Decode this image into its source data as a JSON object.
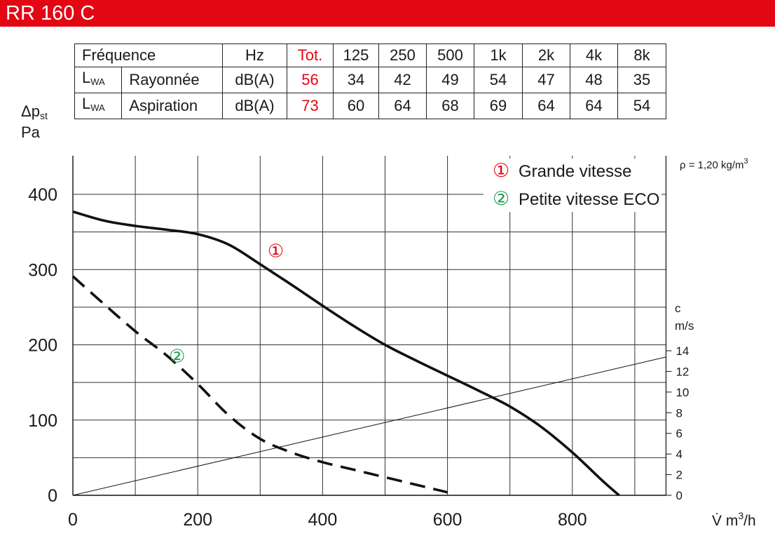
{
  "page": {
    "title": "RR 160 C",
    "brand_color": "#e30613",
    "green_color": "#1aa04a"
  },
  "table": {
    "header": [
      "Fréquence",
      "Hz",
      "Tot.",
      "125",
      "250",
      "500",
      "1k",
      "2k",
      "4k",
      "8k"
    ],
    "rows": [
      {
        "sym": "L",
        "sub": "WA",
        "name": "Rayonnée",
        "unit": "dB(A)",
        "tot": "56",
        "values": [
          "34",
          "42",
          "49",
          "54",
          "47",
          "48",
          "35"
        ]
      },
      {
        "sym": "L",
        "sub": "WA",
        "name": "Aspiration",
        "unit": "dB(A)",
        "tot": "73",
        "values": [
          "60",
          "64",
          "68",
          "69",
          "64",
          "64",
          "54"
        ]
      }
    ]
  },
  "chart_data": {
    "type": "line",
    "ylabel": {
      "sym": "Δp",
      "sub": "st",
      "unit": "Pa"
    },
    "xlabel": {
      "sym": "V̇",
      "unit": "m",
      "sup": "3",
      "tail": "/h"
    },
    "density_note": {
      "lhs": "ρ = 1,20 kg/m",
      "sup": "3"
    },
    "xlim": [
      0,
      950
    ],
    "ylim": [
      0,
      450
    ],
    "xticks": [
      0,
      200,
      400,
      600,
      800
    ],
    "xgrid": [
      100,
      200,
      300,
      400,
      500,
      600,
      700,
      800,
      900
    ],
    "yticks": [
      0,
      100,
      200,
      300,
      400
    ],
    "ygrid": [
      50,
      100,
      150,
      200,
      250,
      300,
      350,
      400
    ],
    "grid": true,
    "legend_position": "top-right",
    "series": [
      {
        "name": "Grande vitesse",
        "marker": "①",
        "style": "solid",
        "x": [
          0,
          50,
          100,
          150,
          200,
          250,
          300,
          350,
          400,
          450,
          500,
          550,
          600,
          650,
          700,
          750,
          800,
          850,
          875
        ],
        "y": [
          377,
          365,
          358,
          353,
          347,
          333,
          307,
          280,
          252,
          225,
          200,
          179,
          159,
          139,
          118,
          91,
          57,
          18,
          0
        ]
      },
      {
        "name": "Petite vitesse ECO",
        "marker": "②",
        "style": "dashed",
        "x": [
          0,
          50,
          100,
          150,
          200,
          250,
          300,
          350,
          400,
          450,
          500,
          550,
          600
        ],
        "y": [
          291,
          254,
          218,
          186,
          148,
          106,
          75,
          57,
          44,
          34,
          24,
          14,
          4
        ]
      }
    ],
    "curve_labels": [
      {
        "marker": "①",
        "x": 325,
        "y": 325
      },
      {
        "marker": "②",
        "x": 167,
        "y": 185
      }
    ],
    "velocity_axis": {
      "label": "c",
      "unit": "m/s",
      "ticks": [
        0,
        2,
        4,
        6,
        8,
        10,
        12,
        14
      ],
      "line": {
        "x": [
          0,
          950
        ],
        "c": [
          0,
          13.4
        ]
      }
    }
  }
}
